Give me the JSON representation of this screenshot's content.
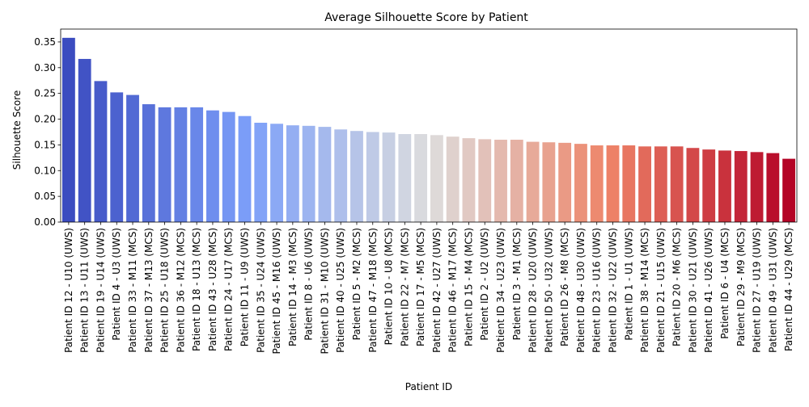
{
  "chart_data": {
    "type": "bar",
    "title": "Average Silhouette Score by Patient",
    "xlabel": "Patient ID",
    "ylabel": "Silhouette Score",
    "ylim": [
      0,
      0.375
    ],
    "yticks": [
      "0.00",
      "0.05",
      "0.10",
      "0.15",
      "0.20",
      "0.25",
      "0.30",
      "0.35"
    ],
    "ytick_values": [
      0,
      0.05,
      0.1,
      0.15,
      0.2,
      0.25,
      0.3,
      0.35
    ],
    "colormap": "coolwarm",
    "categories": [
      "Patient ID 12 - U10 (UWS)",
      "Patient ID 13 - U11 (UWS)",
      "Patient ID 19 - U14 (UWS)",
      "Patient ID 4 - U3 (UWS)",
      "Patient ID 33 - M11 (MCS)",
      "Patient ID 37 - M13 (MCS)",
      "Patient ID 25 - U18 (UWS)",
      "Patient ID 36 - M12 (MCS)",
      "Patient ID 18 - U13 (MCS)",
      "Patient ID 43 - U28 (MCS)",
      "Patient ID 24 - U17 (MCS)",
      "Patient ID 11 - U9 (UWS)",
      "Patient ID 35 - U24 (UWS)",
      "Patient ID 45 - M16 (UWS)",
      "Patient ID 14 - M3 (MCS)",
      "Patient ID 8 - U6 (UWS)",
      "Patient ID 31 - M10 (UWS)",
      "Patient ID 40 - U25 (UWS)",
      "Patient ID 5 - M2 (MCS)",
      "Patient ID 47 - M18 (MCS)",
      "Patient ID 10 - U8 (MCS)",
      "Patient ID 22 - M7 (MCS)",
      "Patient ID 17 - M5 (MCS)",
      "Patient ID 42 - U27 (UWS)",
      "Patient ID 46 - M17 (MCS)",
      "Patient ID 15 - M4 (MCS)",
      "Patient ID 2 - U2 (UWS)",
      "Patient ID 34 - U23 (UWS)",
      "Patient ID 3 - M1 (MCS)",
      "Patient ID 28 - U20 (UWS)",
      "Patient ID 50 - U32 (UWS)",
      "Patient ID 26 - M8 (MCS)",
      "Patient ID 48 - U30 (UWS)",
      "Patient ID 23 - U16 (UWS)",
      "Patient ID 32 - U22 (UWS)",
      "Patient ID 1 - U1 (UWS)",
      "Patient ID 38 - M14 (MCS)",
      "Patient ID 21 - U15 (UWS)",
      "Patient ID 20 - M6 (MCS)",
      "Patient ID 30 - U21 (UWS)",
      "Patient ID 41 - U26 (UWS)",
      "Patient ID 6 - U4 (MCS)",
      "Patient ID 29 - M9 (MCS)",
      "Patient ID 27 - U19 (UWS)",
      "Patient ID 49 - U31 (UWS)",
      "Patient ID 44 - U29 (MCS)"
    ],
    "values": [
      0.358,
      0.317,
      0.274,
      0.252,
      0.247,
      0.229,
      0.223,
      0.223,
      0.223,
      0.217,
      0.214,
      0.206,
      0.193,
      0.191,
      0.188,
      0.187,
      0.185,
      0.18,
      0.177,
      0.175,
      0.174,
      0.171,
      0.171,
      0.169,
      0.166,
      0.163,
      0.161,
      0.16,
      0.16,
      0.156,
      0.155,
      0.154,
      0.152,
      0.149,
      0.149,
      0.149,
      0.147,
      0.147,
      0.147,
      0.144,
      0.141,
      0.139,
      0.138,
      0.136,
      0.134,
      0.123
    ]
  }
}
